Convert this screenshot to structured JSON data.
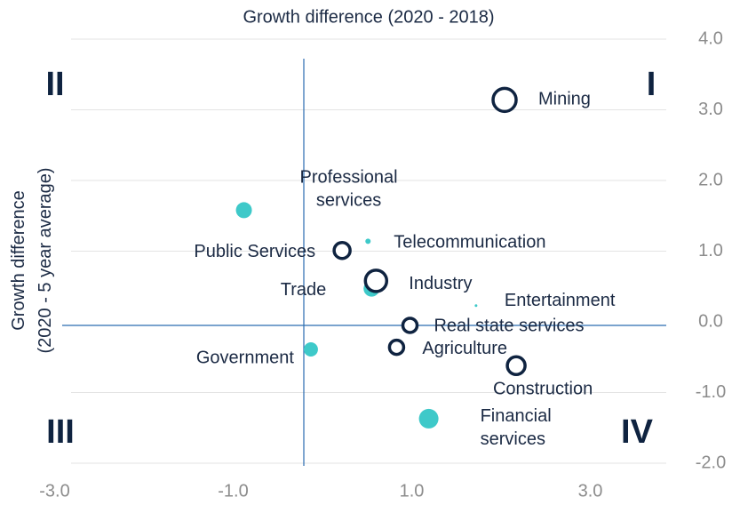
{
  "chart_data": {
    "type": "scatter",
    "title": "Growth difference (2020 - 2018)",
    "y_label": "Growth difference (2020 - 5 year average)",
    "quadrants": [
      "I",
      "II",
      "III",
      "IV"
    ],
    "xlim": [
      -3,
      3.9
    ],
    "ylim": [
      -2,
      4
    ],
    "xticks": [
      {
        "value": -3,
        "label": "-3.0"
      },
      {
        "value": -1,
        "label": "-1.0"
      },
      {
        "value": 1,
        "label": "1.0"
      },
      {
        "value": 3,
        "label": "3.0"
      }
    ],
    "yticks": [
      {
        "value": -2,
        "label": "-2.0"
      },
      {
        "value": -1,
        "label": "-1.0"
      },
      {
        "value": 0,
        "label": "0.0"
      },
      {
        "value": 1,
        "label": "1.0"
      },
      {
        "value": 2,
        "label": "2.0"
      },
      {
        "value": 3,
        "label": "3.0"
      },
      {
        "value": 4,
        "label": "4.0"
      }
    ],
    "grid": true,
    "series": [
      {
        "color": "#3ec9c9",
        "style": "filled",
        "labels": [
          "Professional services",
          "Telecommunication",
          "Trade",
          "Entertainment",
          "Government",
          "Financial services"
        ],
        "x": [
          -0.88,
          0.51,
          0.55,
          1.72,
          -0.13,
          1.19
        ],
        "values": [
          1.58,
          1.14,
          0.47,
          0.23,
          -0.39,
          -1.37
        ],
        "sizes": [
          9,
          3,
          9,
          1.5,
          8,
          11
        ]
      },
      {
        "color": "#0f2340",
        "style": "hollow",
        "labels": [
          "Mining",
          "Public Services",
          "Industry",
          "Real state services",
          "Agriculture",
          "Construction"
        ],
        "x": [
          2.04,
          0.22,
          0.6,
          0.98,
          0.83,
          2.17
        ],
        "values": [
          3.14,
          1.01,
          0.58,
          -0.05,
          -0.36,
          -0.62
        ],
        "sizes": [
          13,
          9,
          12,
          8,
          8,
          10
        ]
      }
    ]
  }
}
